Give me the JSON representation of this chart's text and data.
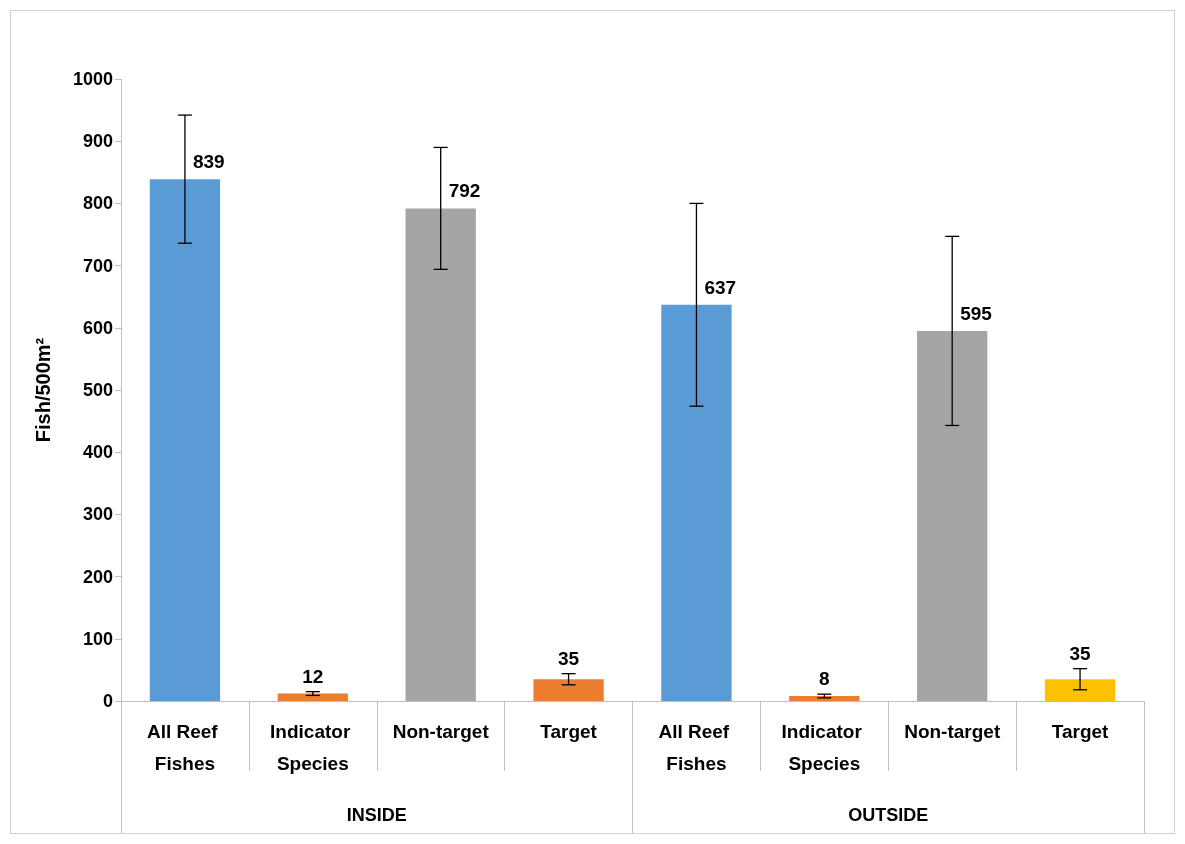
{
  "chart_data": {
    "type": "bar",
    "ylabel": "Fish/500m²",
    "categories": [
      "All Reef Fishes",
      "Indicator Species",
      "Non-target",
      "Target",
      "All Reef Fishes",
      "Indicator Species",
      "Non-target",
      "Target"
    ],
    "values": [
      839,
      12,
      792,
      35,
      637,
      8,
      595,
      35
    ],
    "colors": [
      "#5b9bd5",
      "#ed7d31",
      "#a5a5a5",
      "#ed7d31",
      "#5b9bd5",
      "#ed7d31",
      "#a5a5a5",
      "#ffc000"
    ],
    "errors": [
      103,
      3,
      98,
      9,
      163,
      3,
      152,
      17
    ],
    "annotations": [
      "INSIDE",
      "OUTSIDE"
    ],
    "ylim": [
      0,
      1000
    ],
    "yticks": [
      0,
      100,
      200,
      300,
      400,
      500,
      600,
      700,
      800,
      900,
      1000
    ],
    "grid": false,
    "data_labels": true
  }
}
